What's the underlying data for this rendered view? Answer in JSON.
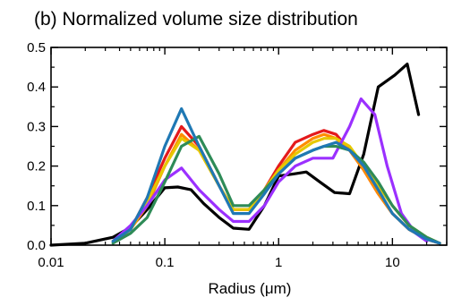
{
  "chart_data": {
    "type": "line",
    "title": "(b) Normalized volume size distribution",
    "xlabel": "Radius (μm)",
    "ylabel": "",
    "xscale": "log",
    "xlim": [
      0.01,
      30
    ],
    "ylim": [
      0,
      0.5
    ],
    "xticks": [
      "0.01",
      "0.1",
      "1",
      "10"
    ],
    "yticks": [
      "0.0",
      "0.1",
      "0.2",
      "0.3",
      "0.4",
      "0.5"
    ],
    "grid": false,
    "legend": "none",
    "series": [
      {
        "color": "#000000",
        "x": [
          0.01,
          0.02,
          0.035,
          0.05,
          0.07,
          0.1,
          0.13,
          0.17,
          0.22,
          0.3,
          0.4,
          0.55,
          0.75,
          1.0,
          1.35,
          1.75,
          2.3,
          3.1,
          4.2,
          5.6,
          7.5,
          10.5,
          13.5,
          17
        ],
        "y": [
          0.0,
          0.005,
          0.02,
          0.045,
          0.09,
          0.145,
          0.147,
          0.14,
          0.105,
          0.07,
          0.043,
          0.04,
          0.1,
          0.175,
          0.18,
          0.185,
          0.16,
          0.133,
          0.13,
          0.23,
          0.4,
          0.43,
          0.458,
          0.33
        ]
      },
      {
        "color": "#e41a1c",
        "x": [
          0.035,
          0.05,
          0.07,
          0.1,
          0.14,
          0.2,
          0.3,
          0.4,
          0.55,
          0.75,
          1.0,
          1.4,
          2.0,
          2.5,
          3.2,
          4.2,
          5.6,
          7.5,
          10,
          14,
          20,
          26
        ],
        "y": [
          0.01,
          0.04,
          0.12,
          0.22,
          0.3,
          0.25,
          0.15,
          0.09,
          0.09,
          0.14,
          0.2,
          0.26,
          0.28,
          0.29,
          0.28,
          0.24,
          0.19,
          0.13,
          0.08,
          0.04,
          0.015,
          0.005
        ]
      },
      {
        "color": "#ff8c00",
        "x": [
          0.035,
          0.05,
          0.07,
          0.1,
          0.14,
          0.2,
          0.3,
          0.4,
          0.55,
          0.75,
          1.0,
          1.4,
          2.0,
          2.5,
          3.2,
          4.2,
          5.6,
          7.5,
          10,
          14,
          20,
          26
        ],
        "y": [
          0.01,
          0.04,
          0.1,
          0.2,
          0.28,
          0.24,
          0.15,
          0.09,
          0.09,
          0.14,
          0.19,
          0.24,
          0.27,
          0.28,
          0.27,
          0.24,
          0.19,
          0.13,
          0.08,
          0.04,
          0.015,
          0.005
        ]
      },
      {
        "color": "#e6c800",
        "x": [
          0.035,
          0.05,
          0.07,
          0.1,
          0.14,
          0.2,
          0.3,
          0.4,
          0.55,
          0.75,
          1.0,
          1.4,
          2.0,
          2.5,
          3.2,
          4.2,
          5.6,
          7.5,
          10,
          14,
          20,
          26
        ],
        "y": [
          0.01,
          0.04,
          0.11,
          0.2,
          0.27,
          0.24,
          0.15,
          0.09,
          0.09,
          0.14,
          0.19,
          0.23,
          0.26,
          0.27,
          0.27,
          0.25,
          0.2,
          0.15,
          0.1,
          0.05,
          0.02,
          0.005
        ]
      },
      {
        "color": "#9b30ff",
        "x": [
          0.035,
          0.05,
          0.07,
          0.1,
          0.14,
          0.2,
          0.3,
          0.4,
          0.55,
          0.75,
          1.0,
          1.4,
          2.0,
          3.0,
          4.2,
          5.3,
          7.0,
          9.0,
          12,
          16,
          20
        ],
        "y": [
          0.01,
          0.05,
          0.1,
          0.165,
          0.195,
          0.14,
          0.09,
          0.06,
          0.06,
          0.1,
          0.16,
          0.2,
          0.22,
          0.22,
          0.3,
          0.37,
          0.33,
          0.2,
          0.08,
          0.03,
          0.01
        ]
      },
      {
        "color": "#2e8b57",
        "x": [
          0.035,
          0.05,
          0.07,
          0.1,
          0.14,
          0.2,
          0.3,
          0.4,
          0.55,
          0.75,
          1.0,
          1.4,
          2.0,
          2.5,
          3.2,
          4.2,
          5.6,
          7.5,
          10,
          14,
          20,
          26
        ],
        "y": [
          0.005,
          0.03,
          0.07,
          0.16,
          0.25,
          0.275,
          0.18,
          0.1,
          0.1,
          0.14,
          0.18,
          0.22,
          0.24,
          0.25,
          0.25,
          0.24,
          0.21,
          0.16,
          0.1,
          0.05,
          0.02,
          0.005
        ]
      },
      {
        "color": "#1f78b4",
        "x": [
          0.035,
          0.05,
          0.07,
          0.1,
          0.14,
          0.2,
          0.3,
          0.4,
          0.55,
          0.75,
          1.0,
          1.4,
          2.0,
          2.5,
          3.2,
          4.2,
          5.6,
          7.5,
          10,
          14,
          20,
          26
        ],
        "y": [
          0.01,
          0.04,
          0.12,
          0.25,
          0.345,
          0.25,
          0.15,
          0.08,
          0.08,
          0.13,
          0.18,
          0.22,
          0.24,
          0.25,
          0.26,
          0.24,
          0.2,
          0.14,
          0.08,
          0.04,
          0.015,
          0.005
        ]
      }
    ]
  }
}
